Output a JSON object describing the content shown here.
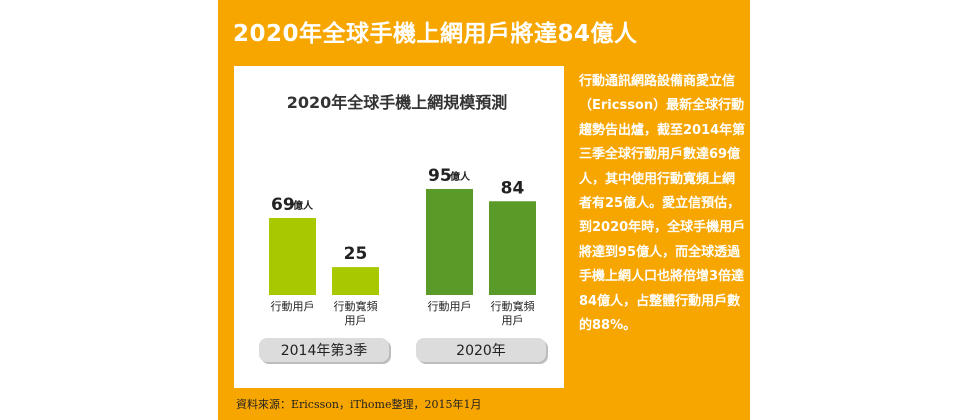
{
  "headline": "2020年全球手機上網用戶將達84億人",
  "body_text": "行動通訊網路設備商愛立信（Ericsson）最新全球行動趨勢告出爐，截至2014年第三季全球行動用戶數達69億人，其中使用行動寬頻上網者有25億人。愛立信預估，到2020年時，全球手機用戶將達到95億人，而全球透過手機上網人口也將倍增3倍達84億人，占整體行動用戶數的88%。",
  "source": "資料來源：Ericsson，iThome整理，2015年1月",
  "colors": {
    "panel": "#f7a600",
    "series_2014": "#a8c800",
    "series_2020": "#5a9a28",
    "group_pill": "#dcdcdc"
  },
  "chart_data": {
    "type": "bar",
    "title": "2020年全球手機上網規模預測",
    "unit": "億人",
    "ylim": [
      0,
      100
    ],
    "grid": false,
    "groups": [
      {
        "label": "2014年第3季",
        "bars": [
          {
            "category": "行動用戶",
            "value": 69,
            "value_label": "69",
            "unit_label": "億人"
          },
          {
            "category": "行動寬頻\n用戶",
            "value": 25,
            "value_label": "25",
            "unit_label": ""
          }
        ]
      },
      {
        "label": "2020年",
        "bars": [
          {
            "category": "行動用戶",
            "value": 95,
            "value_label": "95",
            "unit_label": "億人"
          },
          {
            "category": "行動寬頻\n用戶",
            "value": 84,
            "value_label": "84",
            "unit_label": ""
          }
        ]
      }
    ]
  }
}
